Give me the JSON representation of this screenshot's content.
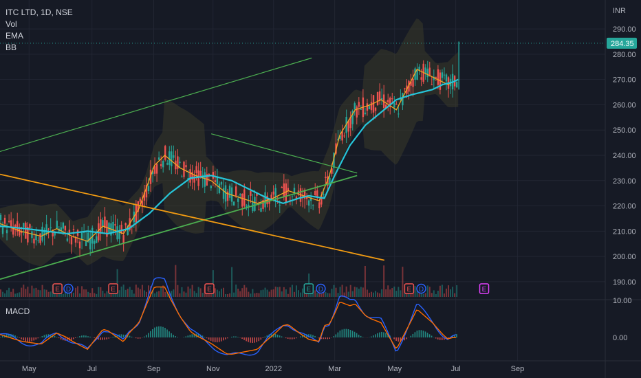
{
  "header": {
    "symbol": "ITC LTD, 1D, NSE",
    "indicators": [
      "Vol",
      "EMA",
      "BB"
    ],
    "currency": "INR"
  },
  "macd": {
    "label": "MACD",
    "ticks": [
      "10.00",
      "0.00"
    ],
    "fast_color": "#2962ff",
    "slow_color": "#ff6d00",
    "histogram_up": "#26a69a",
    "histogram_down": "#ef5350"
  },
  "price_axis": {
    "ticks": [
      "290.00",
      "280.00",
      "270.00",
      "260.00",
      "250.00",
      "240.00",
      "230.00",
      "220.00",
      "210.00",
      "200.00",
      "190.00"
    ],
    "last_price": "284.35",
    "last_price_color": "#26a69a"
  },
  "time_axis": {
    "ticks": [
      "May",
      "Jul",
      "Sep",
      "Nov",
      "2022",
      "Mar",
      "May",
      "Jul",
      "Sep"
    ]
  },
  "colors": {
    "up": "#26a69a",
    "down": "#ef5350",
    "ema_fast": "#f5a623",
    "ema_slow": "#26c6da",
    "bb_fill": "#3b3a2a",
    "trend_green": "#4caf50",
    "trend_orange": "#f39c12"
  },
  "chart_data": {
    "type": "candlestick",
    "title": "ITC LTD, 1D, NSE",
    "ylim": [
      184,
      296
    ],
    "last_close": 284.35,
    "ema_slow_path": [
      [
        0.0,
        212
      ],
      [
        0.05,
        211
      ],
      [
        0.09,
        210
      ],
      [
        0.13,
        209
      ],
      [
        0.17,
        210
      ],
      [
        0.21,
        209
      ],
      [
        0.25,
        211
      ],
      [
        0.29,
        217
      ],
      [
        0.33,
        225
      ],
      [
        0.37,
        231
      ],
      [
        0.41,
        232
      ],
      [
        0.45,
        230
      ],
      [
        0.49,
        226
      ],
      [
        0.52,
        223
      ],
      [
        0.55,
        221
      ],
      [
        0.58,
        223
      ],
      [
        0.6,
        224
      ],
      [
        0.63,
        223
      ],
      [
        0.65,
        232
      ],
      [
        0.68,
        244
      ],
      [
        0.71,
        252
      ],
      [
        0.74,
        257
      ],
      [
        0.77,
        262
      ],
      [
        0.8,
        264
      ],
      [
        0.82,
        265
      ],
      [
        0.84,
        266
      ],
      [
        0.86,
        268
      ],
      [
        0.88,
        269
      ],
      [
        0.89,
        270
      ]
    ],
    "ema_fast_path": [
      [
        0.0,
        213
      ],
      [
        0.04,
        210
      ],
      [
        0.08,
        208
      ],
      [
        0.11,
        211
      ],
      [
        0.14,
        208
      ],
      [
        0.17,
        206
      ],
      [
        0.2,
        212
      ],
      [
        0.24,
        209
      ],
      [
        0.27,
        219
      ],
      [
        0.3,
        236
      ],
      [
        0.32,
        240
      ],
      [
        0.35,
        235
      ],
      [
        0.38,
        232
      ],
      [
        0.41,
        230
      ],
      [
        0.44,
        225
      ],
      [
        0.47,
        223
      ],
      [
        0.5,
        221
      ],
      [
        0.53,
        223
      ],
      [
        0.56,
        226
      ],
      [
        0.59,
        224
      ],
      [
        0.62,
        222
      ],
      [
        0.64,
        232
      ],
      [
        0.66,
        248
      ],
      [
        0.69,
        258
      ],
      [
        0.72,
        260
      ],
      [
        0.74,
        262
      ],
      [
        0.77,
        258
      ],
      [
        0.79,
        266
      ],
      [
        0.81,
        274
      ],
      [
        0.83,
        272
      ],
      [
        0.85,
        270
      ],
      [
        0.87,
        268
      ],
      [
        0.89,
        270
      ]
    ],
    "trend_lines": [
      {
        "color": "trend_green",
        "from": [
          0.0,
          241.5
        ],
        "to": [
          0.515,
          278.5
        ]
      },
      {
        "color": "trend_green",
        "from": [
          0.0,
          191
        ],
        "to": [
          0.59,
          232
        ]
      },
      {
        "color": "trend_green",
        "from": [
          0.349,
          248.5
        ],
        "to": [
          0.59,
          233
        ]
      },
      {
        "color": "trend_orange",
        "from": [
          0.0,
          232.5
        ],
        "to": [
          0.635,
          198.5
        ]
      }
    ],
    "earnings_markers": [
      {
        "x": 0.095,
        "label": "E",
        "color": "#ef5350"
      },
      {
        "x": 0.113,
        "label": "D",
        "color": "#2962ff"
      },
      {
        "x": 0.187,
        "label": "E",
        "color": "#ef5350"
      },
      {
        "x": 0.346,
        "label": "E",
        "color": "#ef5350"
      },
      {
        "x": 0.51,
        "label": "E",
        "color": "#26a69a"
      },
      {
        "x": 0.53,
        "label": "D",
        "color": "#2962ff"
      },
      {
        "x": 0.676,
        "label": "E",
        "color": "#ef5350"
      },
      {
        "x": 0.696,
        "label": "D",
        "color": "#2962ff"
      },
      {
        "x": 0.8,
        "label": "E",
        "color": "#e040fb"
      }
    ]
  }
}
